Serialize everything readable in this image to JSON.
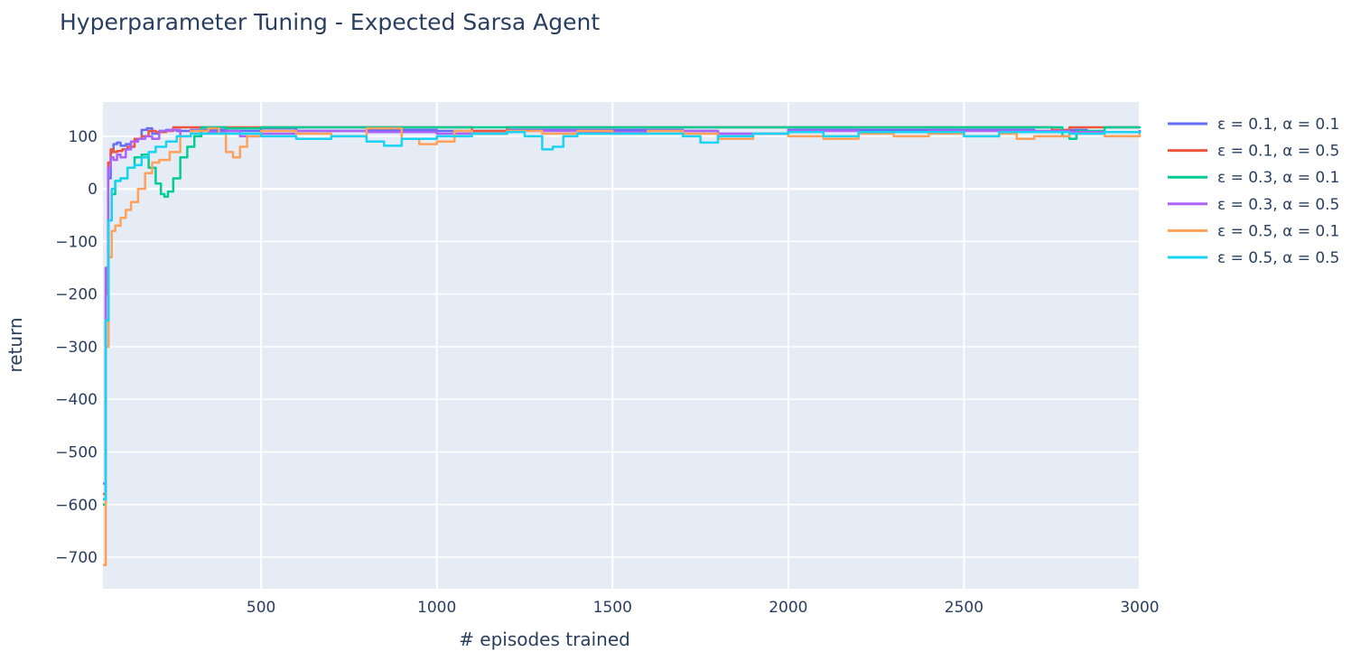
{
  "chart_data": {
    "type": "line",
    "title": "Hyperparameter Tuning - Expected Sarsa Agent",
    "xlabel": "# episodes trained",
    "ylabel": "return",
    "xlim": [
      50,
      3000
    ],
    "ylim": [
      -760,
      165
    ],
    "x_ticks": [
      500,
      1000,
      1500,
      2000,
      2500,
      3000
    ],
    "x_tick_labels": [
      "500",
      "1000",
      "1500",
      "2000",
      "2500",
      "3000"
    ],
    "y_ticks": [
      100,
      0,
      -100,
      -200,
      -300,
      -400,
      -500,
      -600,
      -700
    ],
    "y_tick_labels": [
      "100",
      "0",
      "−100",
      "−200",
      "−300",
      "−400",
      "−500",
      "−600",
      "−700"
    ],
    "grid": true,
    "legend_position": "right",
    "series": [
      {
        "name": "ε = 0.1, α = 0.1",
        "color": "#636efa",
        "points": [
          [
            50,
            -590
          ],
          [
            58,
            -150
          ],
          [
            65,
            20
          ],
          [
            72,
            70
          ],
          [
            80,
            85
          ],
          [
            90,
            88
          ],
          [
            100,
            82
          ],
          [
            115,
            85
          ],
          [
            130,
            90
          ],
          [
            145,
            95
          ],
          [
            160,
            112
          ],
          [
            175,
            115
          ],
          [
            190,
            105
          ],
          [
            210,
            110
          ],
          [
            230,
            112
          ],
          [
            260,
            110
          ],
          [
            300,
            112
          ],
          [
            400,
            110
          ],
          [
            500,
            115
          ],
          [
            600,
            110
          ],
          [
            800,
            112
          ],
          [
            1000,
            110
          ],
          [
            1200,
            112
          ],
          [
            1400,
            112
          ],
          [
            1700,
            110
          ],
          [
            1800,
            105
          ],
          [
            2000,
            112
          ],
          [
            2200,
            112
          ],
          [
            2500,
            112
          ],
          [
            2700,
            108
          ],
          [
            2800,
            112
          ],
          [
            2850,
            108
          ],
          [
            3000,
            112
          ]
        ]
      },
      {
        "name": "ε = 0.1, α = 0.5",
        "color": "#ef553b",
        "points": [
          [
            50,
            -580
          ],
          [
            58,
            -200
          ],
          [
            65,
            50
          ],
          [
            72,
            75
          ],
          [
            80,
            70
          ],
          [
            90,
            72
          ],
          [
            105,
            75
          ],
          [
            120,
            80
          ],
          [
            140,
            95
          ],
          [
            160,
            100
          ],
          [
            180,
            110
          ],
          [
            200,
            108
          ],
          [
            230,
            110
          ],
          [
            250,
            117
          ],
          [
            300,
            117
          ],
          [
            350,
            117
          ],
          [
            500,
            117
          ],
          [
            700,
            117
          ],
          [
            1000,
            117
          ],
          [
            1100,
            110
          ],
          [
            1200,
            117
          ],
          [
            1500,
            117
          ],
          [
            1700,
            117
          ],
          [
            1800,
            117
          ],
          [
            2000,
            117
          ],
          [
            2500,
            117
          ],
          [
            2700,
            117
          ],
          [
            2750,
            112
          ],
          [
            2800,
            117
          ],
          [
            3000,
            117
          ]
        ]
      },
      {
        "name": "ε = 0.3, α = 0.1",
        "color": "#00cc96",
        "points": [
          [
            50,
            -600
          ],
          [
            58,
            -250
          ],
          [
            66,
            -60
          ],
          [
            75,
            -10
          ],
          [
            85,
            15
          ],
          [
            100,
            20
          ],
          [
            120,
            40
          ],
          [
            140,
            60
          ],
          [
            160,
            65
          ],
          [
            180,
            40
          ],
          [
            200,
            10
          ],
          [
            215,
            -10
          ],
          [
            225,
            -15
          ],
          [
            235,
            -5
          ],
          [
            250,
            20
          ],
          [
            270,
            60
          ],
          [
            290,
            80
          ],
          [
            310,
            100
          ],
          [
            330,
            117
          ],
          [
            400,
            115
          ],
          [
            500,
            117
          ],
          [
            700,
            117
          ],
          [
            1000,
            117
          ],
          [
            1200,
            117
          ],
          [
            1500,
            117
          ],
          [
            1700,
            117
          ],
          [
            2000,
            117
          ],
          [
            2300,
            117
          ],
          [
            2500,
            117
          ],
          [
            2700,
            117
          ],
          [
            2780,
            100
          ],
          [
            2800,
            95
          ],
          [
            2820,
            110
          ],
          [
            2900,
            117
          ],
          [
            3000,
            115
          ]
        ]
      },
      {
        "name": "ε = 0.3, α = 0.5",
        "color": "#ab63fa",
        "points": [
          [
            50,
            -560
          ],
          [
            58,
            -150
          ],
          [
            65,
            40
          ],
          [
            72,
            60
          ],
          [
            80,
            55
          ],
          [
            90,
            65
          ],
          [
            100,
            60
          ],
          [
            115,
            75
          ],
          [
            130,
            90
          ],
          [
            150,
            95
          ],
          [
            170,
            100
          ],
          [
            190,
            95
          ],
          [
            210,
            110
          ],
          [
            240,
            112
          ],
          [
            270,
            100
          ],
          [
            300,
            110
          ],
          [
            350,
            108
          ],
          [
            400,
            110
          ],
          [
            440,
            100
          ],
          [
            500,
            105
          ],
          [
            600,
            110
          ],
          [
            800,
            108
          ],
          [
            1000,
            105
          ],
          [
            1200,
            110
          ],
          [
            1400,
            108
          ],
          [
            1600,
            110
          ],
          [
            1800,
            105
          ],
          [
            2000,
            110
          ],
          [
            2200,
            108
          ],
          [
            2400,
            110
          ],
          [
            2600,
            110
          ],
          [
            2800,
            108
          ],
          [
            3000,
            110
          ]
        ]
      },
      {
        "name": "ε = 0.5, α = 0.1",
        "color": "#ffa15a",
        "points": [
          [
            50,
            -715
          ],
          [
            58,
            -300
          ],
          [
            66,
            -130
          ],
          [
            75,
            -80
          ],
          [
            85,
            -70
          ],
          [
            100,
            -55
          ],
          [
            115,
            -40
          ],
          [
            130,
            -25
          ],
          [
            150,
            0
          ],
          [
            170,
            30
          ],
          [
            190,
            50
          ],
          [
            210,
            55
          ],
          [
            240,
            70
          ],
          [
            270,
            100
          ],
          [
            300,
            110
          ],
          [
            350,
            115
          ],
          [
            380,
            105
          ],
          [
            400,
            70
          ],
          [
            420,
            60
          ],
          [
            440,
            80
          ],
          [
            460,
            100
          ],
          [
            500,
            110
          ],
          [
            600,
            105
          ],
          [
            700,
            100
          ],
          [
            800,
            115
          ],
          [
            900,
            95
          ],
          [
            950,
            85
          ],
          [
            1000,
            90
          ],
          [
            1050,
            110
          ],
          [
            1100,
            105
          ],
          [
            1200,
            110
          ],
          [
            1300,
            105
          ],
          [
            1400,
            110
          ],
          [
            1500,
            105
          ],
          [
            1600,
            110
          ],
          [
            1700,
            105
          ],
          [
            1800,
            95
          ],
          [
            1900,
            105
          ],
          [
            2000,
            100
          ],
          [
            2100,
            95
          ],
          [
            2200,
            105
          ],
          [
            2300,
            100
          ],
          [
            2400,
            105
          ],
          [
            2500,
            100
          ],
          [
            2600,
            105
          ],
          [
            2650,
            95
          ],
          [
            2700,
            100
          ],
          [
            2800,
            105
          ],
          [
            2900,
            100
          ],
          [
            3000,
            105
          ]
        ]
      },
      {
        "name": "ε = 0.5, α = 0.5",
        "color": "#19d3f3",
        "points": [
          [
            50,
            -590
          ],
          [
            58,
            -250
          ],
          [
            66,
            -60
          ],
          [
            75,
            0
          ],
          [
            85,
            15
          ],
          [
            100,
            20
          ],
          [
            120,
            40
          ],
          [
            140,
            45
          ],
          [
            160,
            60
          ],
          [
            180,
            70
          ],
          [
            200,
            80
          ],
          [
            230,
            90
          ],
          [
            260,
            100
          ],
          [
            300,
            105
          ],
          [
            400,
            105
          ],
          [
            500,
            100
          ],
          [
            600,
            95
          ],
          [
            700,
            100
          ],
          [
            800,
            90
          ],
          [
            850,
            82
          ],
          [
            900,
            95
          ],
          [
            1000,
            100
          ],
          [
            1100,
            105
          ],
          [
            1200,
            108
          ],
          [
            1250,
            100
          ],
          [
            1300,
            75
          ],
          [
            1330,
            80
          ],
          [
            1360,
            100
          ],
          [
            1400,
            105
          ],
          [
            1500,
            105
          ],
          [
            1700,
            100
          ],
          [
            1750,
            88
          ],
          [
            1800,
            100
          ],
          [
            1900,
            105
          ],
          [
            2000,
            108
          ],
          [
            2100,
            100
          ],
          [
            2200,
            108
          ],
          [
            2400,
            108
          ],
          [
            2500,
            100
          ],
          [
            2600,
            108
          ],
          [
            2800,
            105
          ],
          [
            2900,
            108
          ],
          [
            3000,
            105
          ]
        ]
      }
    ]
  }
}
